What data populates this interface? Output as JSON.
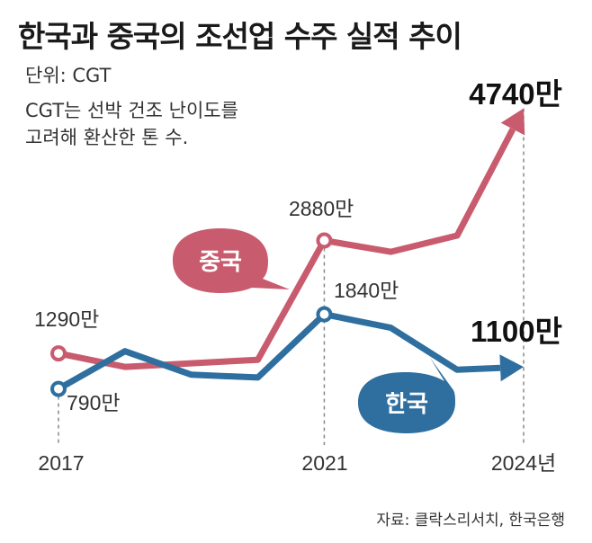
{
  "title": "한국과 중국의 조선업 수주 실적 추이",
  "unit_label": "단위: CGT",
  "note_lines": [
    "CGT는 선박 건조 난이도를",
    "고려해 환산한 톤 수."
  ],
  "source": "자료: 클락스리서치, 한국은행",
  "colors": {
    "china": "#c95b6e",
    "korea": "#2f6f9f",
    "dashed": "#888888"
  },
  "chart_data": {
    "type": "line",
    "title": "한국과 중국의 조선업 수주 실적 추이",
    "ylabel": "CGT",
    "x_ticks": [
      "2017",
      "2021",
      "2024년"
    ],
    "x": [
      2017,
      2018,
      2019,
      2020,
      2021,
      2022,
      2023,
      2024
    ],
    "ylim": [
      0,
      5000
    ],
    "series": [
      {
        "name": "중국",
        "values": [
          1290,
          1100,
          1150,
          1200,
          2880,
          2720,
          2950,
          4740
        ]
      },
      {
        "name": "한국",
        "values": [
          790,
          1320,
          990,
          950,
          1840,
          1650,
          1060,
          1100
        ]
      }
    ],
    "data_labels": {
      "china_start": "1290만",
      "china_2021": "2880만",
      "china_end": "4740만",
      "korea_start": "790만",
      "korea_2021": "1840만",
      "korea_end": "1100만"
    }
  }
}
